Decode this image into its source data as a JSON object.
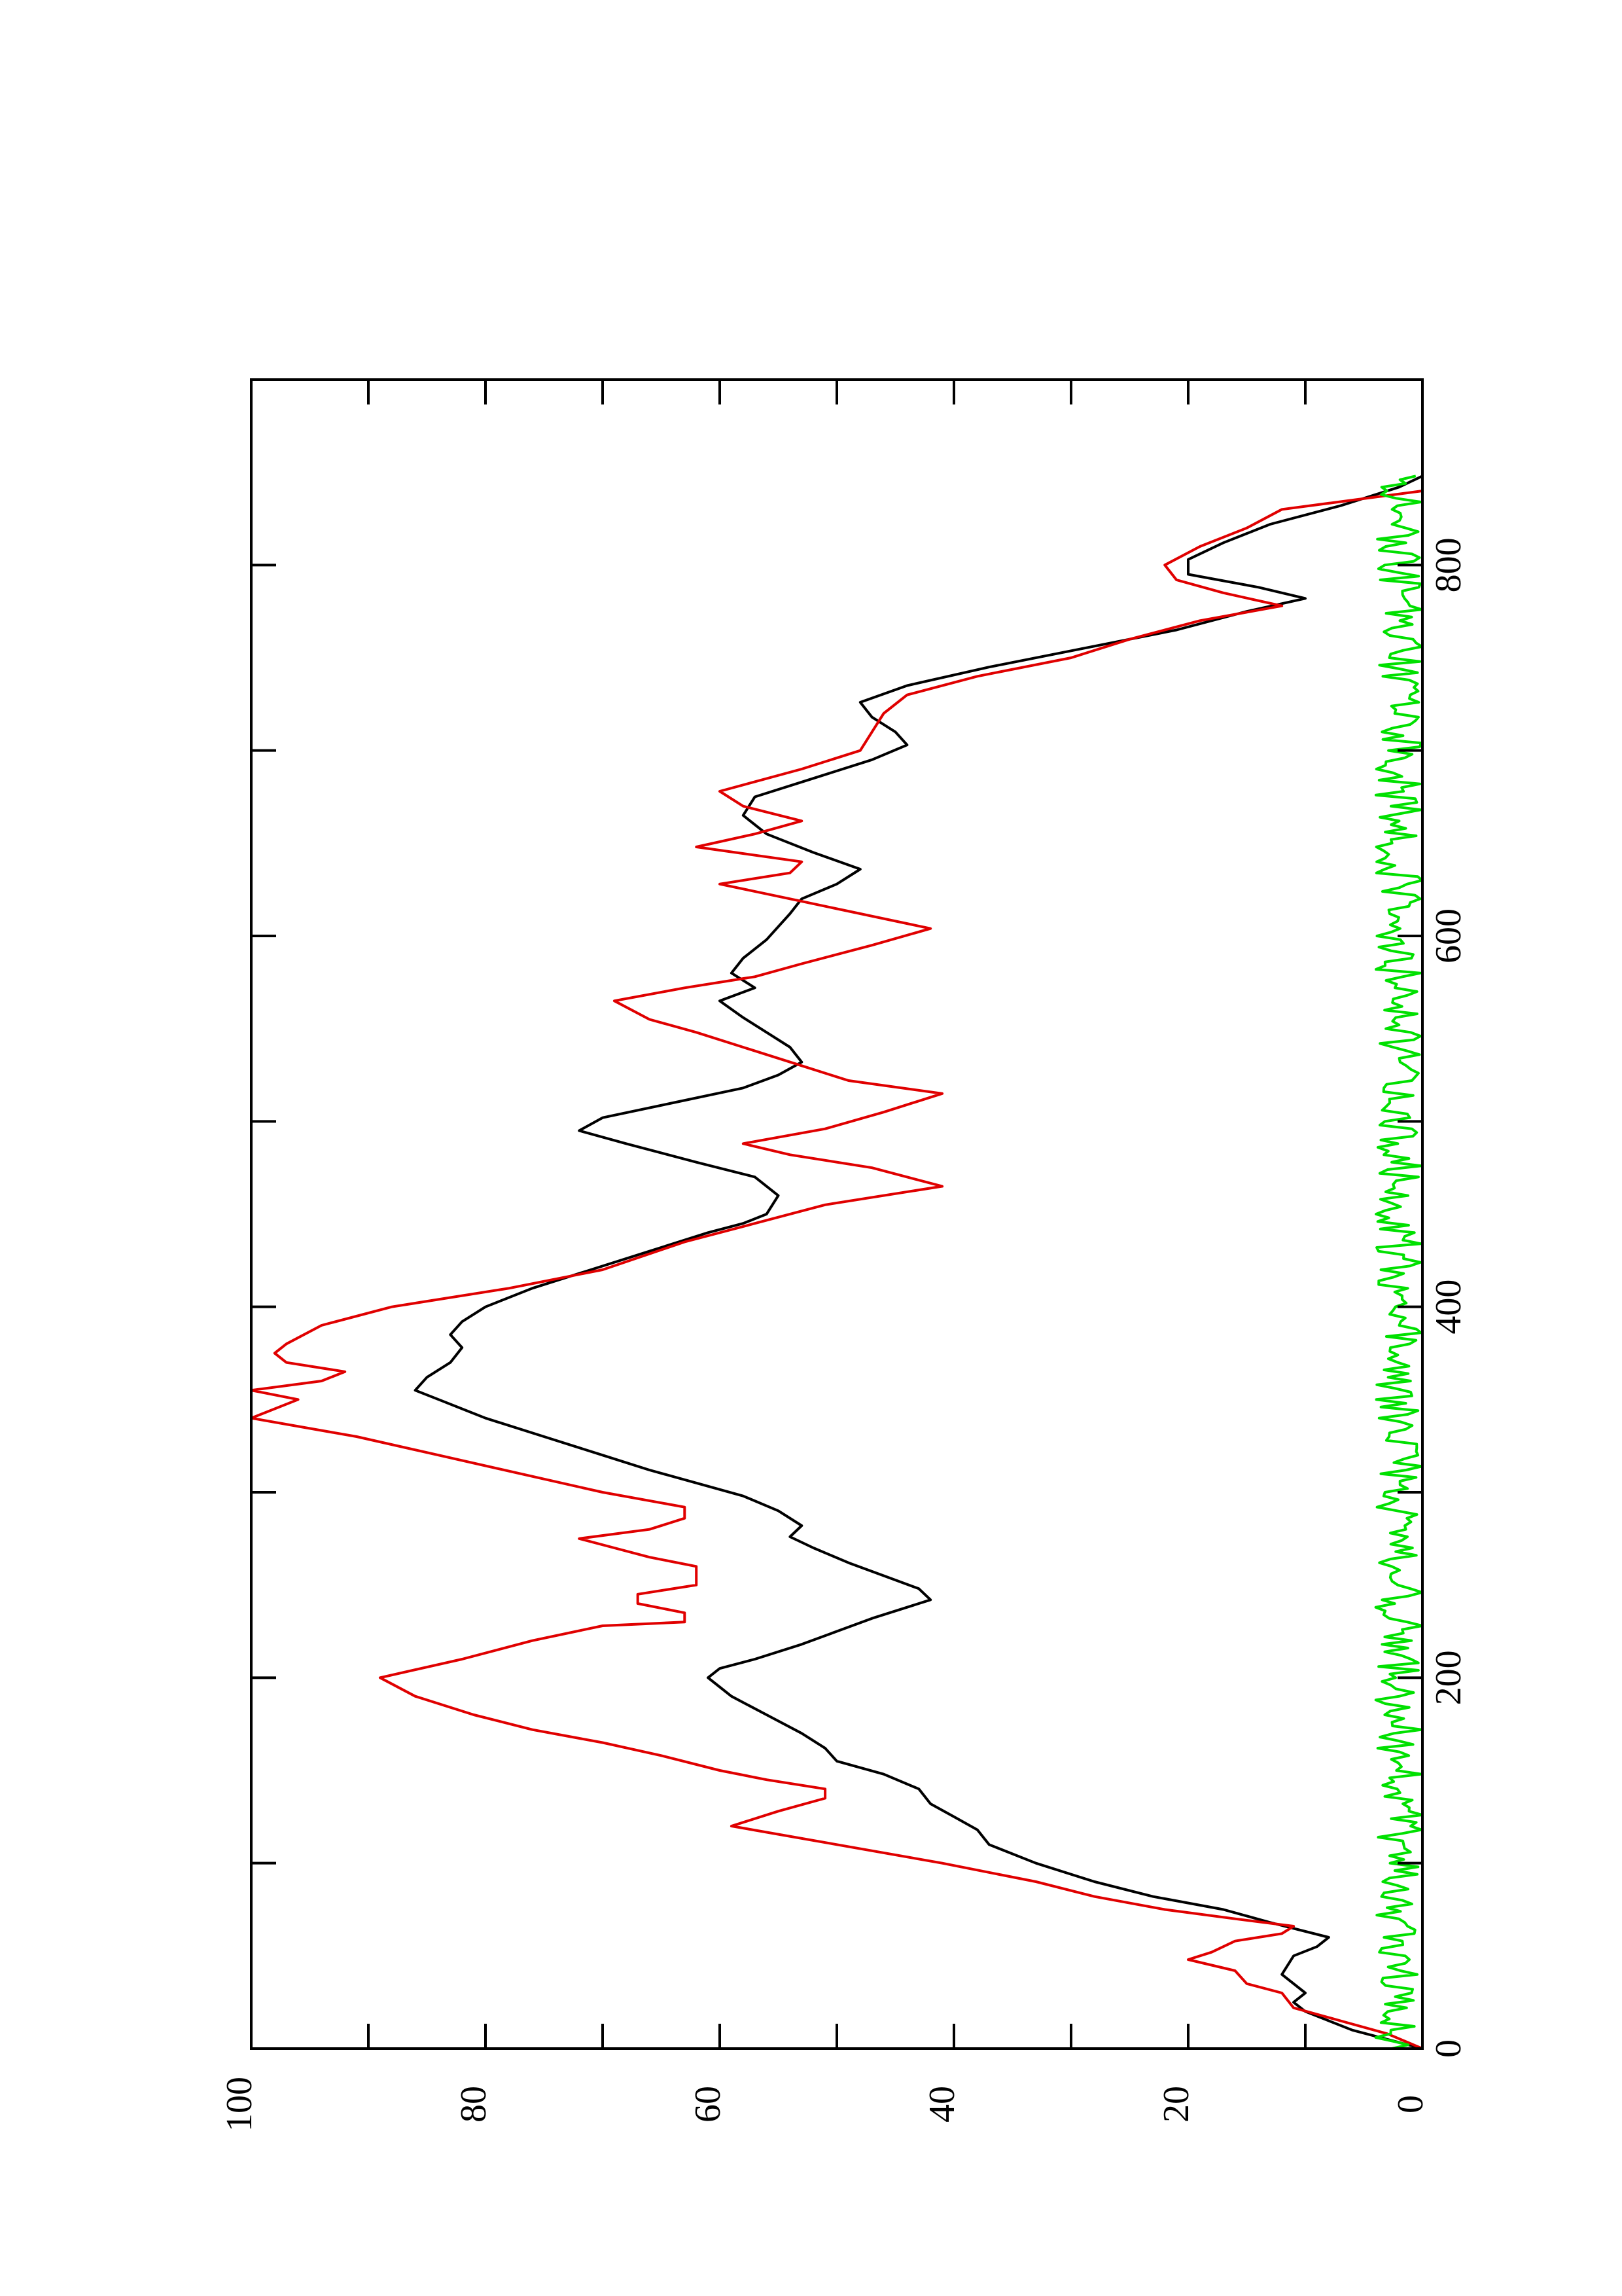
{
  "colors": {
    "background": "#ffffff",
    "axis": "#000000",
    "series": [
      "#000000",
      "#e00000",
      "#00e000"
    ]
  },
  "chart_data": {
    "type": "line",
    "orientation": "rotated 90 degrees counter-clockwise",
    "title": "",
    "xlabel": "",
    "ylabel": "",
    "xlim": [
      0,
      900
    ],
    "ylim": [
      0,
      100
    ],
    "x_ticks": [
      0,
      200,
      400,
      600,
      800
    ],
    "x_minor_ticks": [
      100,
      300,
      500,
      700
    ],
    "y_ticks": [
      0,
      20,
      40,
      60,
      80,
      100
    ],
    "y_minor_ticks": [
      10,
      30,
      50,
      70,
      90
    ],
    "grid": false,
    "legend": "none",
    "series": [
      {
        "color": "#000000",
        "points": [
          [
            0,
            0
          ],
          [
            10,
            6
          ],
          [
            20,
            10
          ],
          [
            25,
            11
          ],
          [
            30,
            10
          ],
          [
            40,
            12
          ],
          [
            50,
            11
          ],
          [
            55,
            9
          ],
          [
            60,
            8
          ],
          [
            68,
            13
          ],
          [
            75,
            17
          ],
          [
            82,
            23
          ],
          [
            90,
            28
          ],
          [
            100,
            33
          ],
          [
            110,
            37
          ],
          [
            118,
            38
          ],
          [
            125,
            40
          ],
          [
            132,
            42
          ],
          [
            140,
            43
          ],
          [
            148,
            46
          ],
          [
            155,
            50
          ],
          [
            162,
            51
          ],
          [
            170,
            53
          ],
          [
            180,
            56
          ],
          [
            190,
            59
          ],
          [
            195,
            60
          ],
          [
            200,
            61
          ],
          [
            205,
            60
          ],
          [
            210,
            57
          ],
          [
            218,
            53
          ],
          [
            225,
            50
          ],
          [
            232,
            47
          ],
          [
            238,
            44
          ],
          [
            242,
            42
          ],
          [
            248,
            43
          ],
          [
            255,
            46
          ],
          [
            262,
            49
          ],
          [
            270,
            52
          ],
          [
            276,
            54
          ],
          [
            282,
            53
          ],
          [
            290,
            55
          ],
          [
            298,
            58
          ],
          [
            305,
            62
          ],
          [
            312,
            66
          ],
          [
            320,
            70
          ],
          [
            330,
            75
          ],
          [
            340,
            80
          ],
          [
            350,
            84
          ],
          [
            355,
            86
          ],
          [
            362,
            85
          ],
          [
            370,
            83
          ],
          [
            378,
            82
          ],
          [
            385,
            83
          ],
          [
            392,
            82
          ],
          [
            400,
            80
          ],
          [
            410,
            76
          ],
          [
            420,
            71
          ],
          [
            430,
            66
          ],
          [
            440,
            61
          ],
          [
            445,
            58
          ],
          [
            450,
            56
          ],
          [
            460,
            55
          ],
          [
            470,
            57
          ],
          [
            478,
            62
          ],
          [
            488,
            68
          ],
          [
            495,
            72
          ],
          [
            502,
            70
          ],
          [
            510,
            64
          ],
          [
            518,
            58
          ],
          [
            525,
            55
          ],
          [
            532,
            53
          ],
          [
            540,
            54
          ],
          [
            548,
            56
          ],
          [
            556,
            58
          ],
          [
            565,
            60
          ],
          [
            572,
            57
          ],
          [
            580,
            59
          ],
          [
            588,
            58
          ],
          [
            598,
            56
          ],
          [
            605,
            55
          ],
          [
            612,
            54
          ],
          [
            620,
            53
          ],
          [
            628,
            50
          ],
          [
            636,
            48
          ],
          [
            645,
            52
          ],
          [
            655,
            56
          ],
          [
            665,
            58
          ],
          [
            675,
            57
          ],
          [
            685,
            52
          ],
          [
            695,
            47
          ],
          [
            703,
            44
          ],
          [
            710,
            45
          ],
          [
            718,
            47
          ],
          [
            726,
            48
          ],
          [
            735,
            44
          ],
          [
            745,
            37
          ],
          [
            755,
            29
          ],
          [
            765,
            21
          ],
          [
            775,
            15
          ],
          [
            782,
            10
          ],
          [
            788,
            14
          ],
          [
            795,
            20
          ],
          [
            803,
            20
          ],
          [
            812,
            17
          ],
          [
            822,
            13
          ],
          [
            832,
            7
          ],
          [
            842,
            2
          ],
          [
            848,
            0
          ]
        ]
      },
      {
        "color": "#e00000",
        "points": [
          [
            0,
            0
          ],
          [
            8,
            3
          ],
          [
            15,
            7
          ],
          [
            22,
            11
          ],
          [
            30,
            12
          ],
          [
            35,
            15
          ],
          [
            42,
            16
          ],
          [
            48,
            20
          ],
          [
            52,
            18
          ],
          [
            58,
            16
          ],
          [
            62,
            12
          ],
          [
            66,
            11
          ],
          [
            70,
            16
          ],
          [
            75,
            22
          ],
          [
            82,
            28
          ],
          [
            90,
            33
          ],
          [
            100,
            41
          ],
          [
            110,
            50
          ],
          [
            120,
            59
          ],
          [
            128,
            55
          ],
          [
            135,
            51
          ],
          [
            140,
            51
          ],
          [
            145,
            56
          ],
          [
            150,
            60
          ],
          [
            158,
            65
          ],
          [
            165,
            70
          ],
          [
            172,
            76
          ],
          [
            180,
            81
          ],
          [
            190,
            86
          ],
          [
            200,
            89
          ],
          [
            210,
            82
          ],
          [
            220,
            76
          ],
          [
            228,
            70
          ],
          [
            230,
            63
          ],
          [
            235,
            63
          ],
          [
            240,
            67
          ],
          [
            245,
            67
          ],
          [
            250,
            62
          ],
          [
            255,
            62
          ],
          [
            260,
            62
          ],
          [
            265,
            66
          ],
          [
            270,
            69
          ],
          [
            275,
            72
          ],
          [
            280,
            66
          ],
          [
            286,
            63
          ],
          [
            292,
            63
          ],
          [
            300,
            70
          ],
          [
            310,
            77
          ],
          [
            320,
            84
          ],
          [
            330,
            91
          ],
          [
            340,
            100
          ],
          [
            350,
            96
          ],
          [
            355,
            100
          ],
          [
            360,
            94
          ],
          [
            365,
            92
          ],
          [
            370,
            97
          ],
          [
            375,
            98
          ],
          [
            380,
            97
          ],
          [
            390,
            94
          ],
          [
            400,
            88
          ],
          [
            410,
            78
          ],
          [
            420,
            70
          ],
          [
            435,
            63
          ],
          [
            445,
            57
          ],
          [
            455,
            51
          ],
          [
            465,
            41
          ],
          [
            475,
            47
          ],
          [
            482,
            54
          ],
          [
            488,
            58
          ],
          [
            496,
            51
          ],
          [
            505,
            46
          ],
          [
            515,
            41
          ],
          [
            522,
            49
          ],
          [
            530,
            53
          ],
          [
            540,
            58
          ],
          [
            548,
            62
          ],
          [
            555,
            66
          ],
          [
            565,
            69
          ],
          [
            572,
            63
          ],
          [
            578,
            57
          ],
          [
            585,
            53
          ],
          [
            595,
            47
          ],
          [
            604,
            42
          ],
          [
            612,
            48
          ],
          [
            620,
            54
          ],
          [
            628,
            60
          ],
          [
            634,
            54
          ],
          [
            640,
            53
          ],
          [
            648,
            62
          ],
          [
            655,
            57
          ],
          [
            662,
            53
          ],
          [
            670,
            58
          ],
          [
            678,
            60
          ],
          [
            690,
            53
          ],
          [
            700,
            48
          ],
          [
            710,
            47
          ],
          [
            720,
            46
          ],
          [
            730,
            44
          ],
          [
            740,
            38
          ],
          [
            750,
            30
          ],
          [
            760,
            25
          ],
          [
            770,
            19
          ],
          [
            778,
            12
          ],
          [
            785,
            17
          ],
          [
            792,
            21
          ],
          [
            800,
            22
          ],
          [
            810,
            19
          ],
          [
            820,
            15
          ],
          [
            830,
            12
          ],
          [
            840,
            0
          ]
        ]
      },
      {
        "color": "#00e000",
        "type": "noise",
        "x_range": [
          0,
          848
        ],
        "y_range": [
          0,
          4
        ]
      }
    ]
  }
}
